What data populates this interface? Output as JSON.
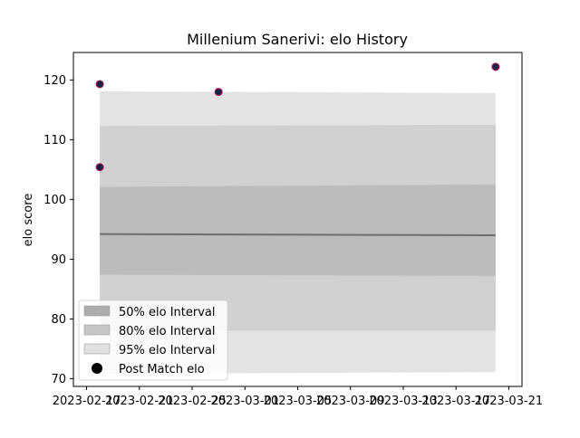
{
  "chart_data": {
    "type": "area",
    "title": "Millenium Sanerivi: elo History",
    "xlabel": "",
    "ylabel": "elo score",
    "xlim": [
      "2023-02-16",
      "2023-03-22"
    ],
    "ylim": [
      68.7,
      124.6
    ],
    "x_ticks": [
      "2023-02-17",
      "2023-02-21",
      "2023-02-25",
      "2023-03-01",
      "2023-03-05",
      "2023-03-09",
      "2023-03-13",
      "2023-03-17",
      "2023-03-21"
    ],
    "y_ticks": [
      70,
      80,
      90,
      100,
      110,
      120
    ],
    "grid": false,
    "legend_position": "lower-left",
    "mean_line": {
      "x": [
        "2023-02-18",
        "2023-03-20"
      ],
      "y": [
        94.2,
        94.0
      ]
    },
    "intervals": [
      {
        "name": "95% elo Interval",
        "color": "#e3e3e3",
        "x": [
          "2023-02-18",
          "2023-03-20"
        ],
        "lower": [
          70.8,
          71.1
        ],
        "upper": [
          118.1,
          117.8
        ]
      },
      {
        "name": "80% elo Interval",
        "color": "#d0d0d0",
        "x": [
          "2023-02-18",
          "2023-03-20"
        ],
        "lower": [
          78.0,
          78.0
        ],
        "upper": [
          112.3,
          112.5
        ]
      },
      {
        "name": "50% elo Interval",
        "color": "#bcbcbc",
        "x": [
          "2023-02-18",
          "2023-03-20"
        ],
        "lower": [
          87.4,
          87.2
        ],
        "upper": [
          102.1,
          102.5
        ]
      }
    ],
    "series": [
      {
        "name": "Post Match elo",
        "type": "scatter",
        "x": [
          "2023-02-18",
          "2023-02-18",
          "2023-02-27",
          "2023-03-20"
        ],
        "y": [
          119.3,
          105.4,
          118.0,
          122.2
        ]
      }
    ],
    "legend": [
      {
        "label": "50% elo Interval",
        "color": "#adadad",
        "kind": "patch"
      },
      {
        "label": "80% elo Interval",
        "color": "#c6c6c6",
        "kind": "patch"
      },
      {
        "label": "95% elo Interval",
        "color": "#e0e0e0",
        "kind": "patch"
      },
      {
        "label": "Post Match elo",
        "color": "#000000",
        "kind": "marker"
      }
    ]
  }
}
